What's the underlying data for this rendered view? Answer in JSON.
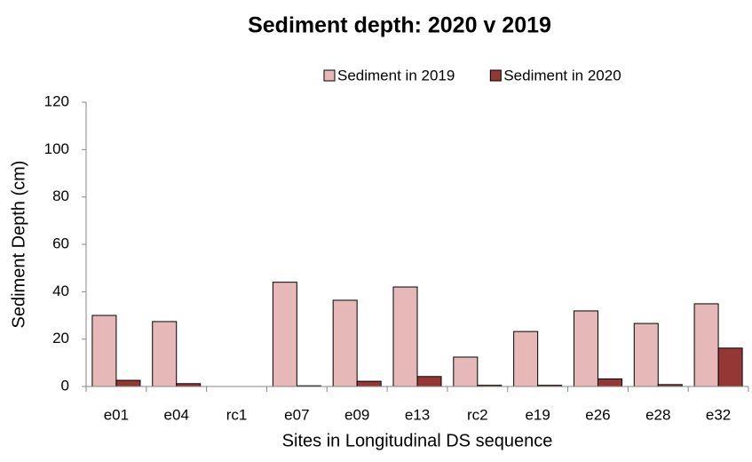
{
  "chart_data": {
    "type": "bar",
    "title": "Sediment depth:  2020 v 2019",
    "x_label": "Sites in Longitudinal DS sequence",
    "y_label": "Sediment Depth (cm)",
    "categories": [
      "e01",
      "e04",
      "rc1",
      "e07",
      "e09",
      "e13",
      "rc2",
      "e19",
      "e26",
      "e28",
      "e32"
    ],
    "series": [
      {
        "name": "Sediment in 2019",
        "color": "#e6b9b8",
        "values": [
          30,
          27.4,
          0,
          44,
          36.4,
          42,
          12.4,
          23.2,
          31.9,
          26.6,
          34.9
        ]
      },
      {
        "name": "Sediment in 2020",
        "color": "#953735",
        "values": [
          2.6,
          1.2,
          0,
          0.3,
          2.2,
          4.2,
          0.5,
          0.5,
          3.2,
          0.8,
          16.2
        ]
      }
    ],
    "ylim": [
      0,
      120
    ],
    "yticks": [
      0,
      20,
      40,
      60,
      80,
      100,
      120
    ],
    "grid": false,
    "legend": "top"
  }
}
